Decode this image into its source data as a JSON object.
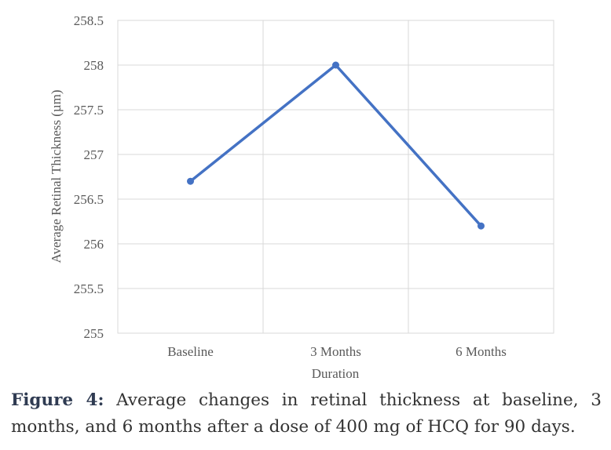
{
  "chart_data": {
    "type": "line",
    "categories": [
      "Baseline",
      "3 Months",
      "6 Months"
    ],
    "series": [
      {
        "values": [
          256.7,
          258.0,
          256.2
        ],
        "color": "#4472c4"
      }
    ],
    "xlabel": "Duration",
    "ylabel": "Average Retinal Thickness (µm)",
    "ylim": [
      255,
      258.5
    ],
    "yticks": [
      "255",
      "255.5",
      "256",
      "256.5",
      "257",
      "257.5",
      "258",
      "258.5"
    ],
    "grid": true,
    "legend": "none"
  },
  "caption": {
    "label": "Figure 4:",
    "text": "Average changes in retinal thickness at baseline, 3 months, and 6 months after a dose of 400 mg of HCQ for 90 days."
  }
}
